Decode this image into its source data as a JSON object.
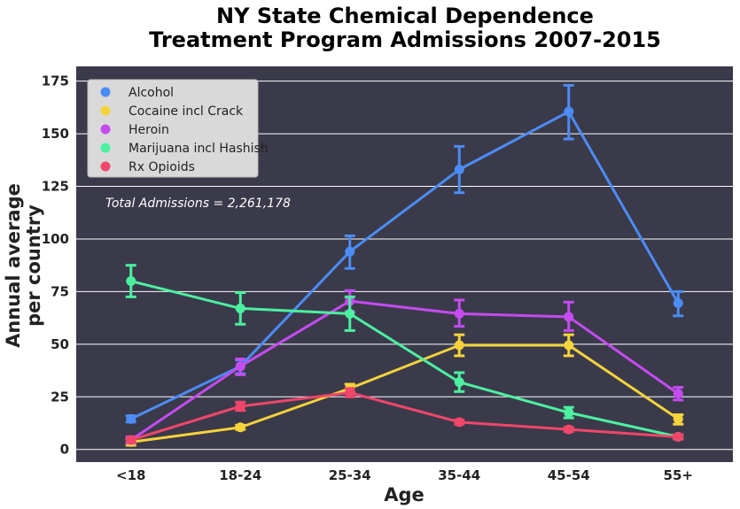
{
  "chart_data": {
    "type": "line",
    "title_lines": [
      "NY State Chemical Dependence",
      "Treatment Program Admissions 2007-2015"
    ],
    "xlabel": "Age",
    "ylabel_lines": [
      "Annual average",
      "per country"
    ],
    "categories": [
      "<18",
      "18-24",
      "25-34",
      "35-44",
      "45-54",
      "55+"
    ],
    "ylim": [
      -6,
      182
    ],
    "yticks": [
      0,
      25,
      50,
      75,
      100,
      125,
      150,
      175
    ],
    "grid": true,
    "legend_position": "top-left",
    "annotation": "Total Admissions = 2,261,178",
    "background_color": "#3a3a4a",
    "series": [
      {
        "name": "Alcohol",
        "color": "#4c8cf5",
        "values": [
          14.5,
          39.5,
          94,
          133,
          160.5,
          69.5
        ],
        "err_low": [
          13,
          36,
          86,
          122,
          147.5,
          63.5
        ],
        "err_high": [
          16,
          42.5,
          101.5,
          144,
          173,
          75
        ]
      },
      {
        "name": "Cocaine incl Crack",
        "color": "#f5d33c",
        "values": [
          3.5,
          10.5,
          29,
          49.5,
          49.5,
          14.5
        ],
        "err_low": [
          2,
          9.5,
          27,
          44.5,
          44.5,
          12
        ],
        "err_high": [
          5,
          11.5,
          31,
          54.5,
          54.5,
          16.5
        ]
      },
      {
        "name": "Heroin",
        "color": "#c44cf0",
        "values": [
          4.5,
          39.5,
          70.5,
          64.5,
          63,
          26.5
        ],
        "err_low": [
          3,
          35.5,
          65.5,
          58.5,
          56.5,
          23.5
        ],
        "err_high": [
          6,
          43,
          75.5,
          71,
          70,
          29.5
        ]
      },
      {
        "name": "Marijuana incl Hashish",
        "color": "#4cf0a0",
        "values": [
          80,
          67,
          64.5,
          32,
          17.5,
          6
        ],
        "err_low": [
          72.5,
          59.5,
          56.5,
          27.5,
          15,
          5
        ],
        "err_high": [
          87.5,
          74.5,
          72.5,
          36.5,
          20,
          7
        ]
      },
      {
        "name": "Rx Opioids",
        "color": "#f0466a",
        "values": [
          4.5,
          20.5,
          27,
          13,
          9.5,
          6
        ],
        "err_low": [
          3.5,
          18.5,
          25,
          12,
          8.5,
          5
        ],
        "err_high": [
          5.5,
          22.5,
          29,
          14,
          10.5,
          7
        ]
      }
    ]
  }
}
